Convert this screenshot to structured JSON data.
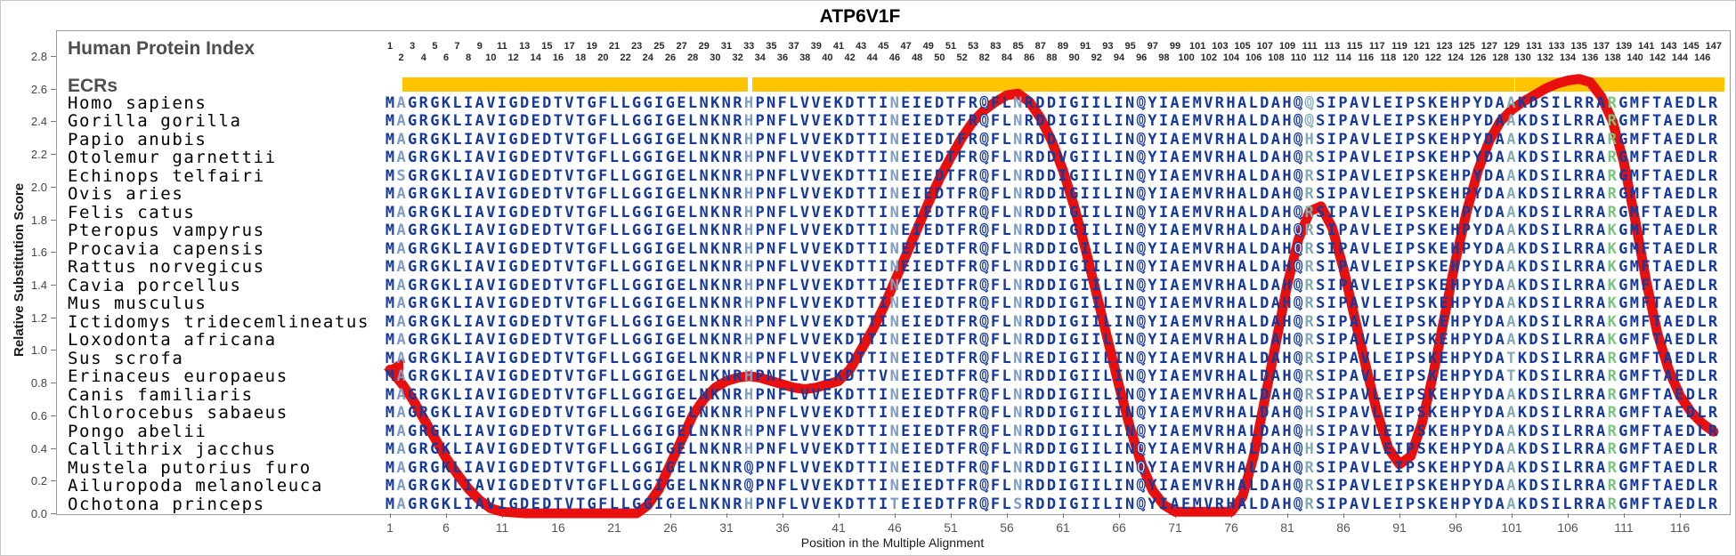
{
  "title": "ATP6V1F",
  "header": {
    "human_protein_index_label": "Human Protein Index",
    "ecrs_label": "ECRs",
    "index_numbering": {
      "columns": 119,
      "skip_after": 53,
      "skip_amount": 28,
      "max_index": 147
    }
  },
  "ecr_bars": {
    "color": "#FFC400",
    "ranges_cols": [
      [
        2.6,
        32.4
      ],
      [
        33.8,
        82.6
      ],
      [
        83.5,
        100.7
      ],
      [
        101.8,
        119.5
      ]
    ]
  },
  "alignment": {
    "species": [
      "Homo sapiens",
      "Gorilla gorilla",
      "Papio anubis",
      "Otolemur garnettii",
      "Echinops telfairi",
      "Ovis aries",
      "Felis catus",
      "Pteropus vampyrus",
      "Procavia capensis",
      "Rattus norvegicus",
      "Cavia porcellus",
      "Mus musculus",
      "Ictidomys tridecemlineatus",
      "Loxodonta africana",
      "Sus scrofa",
      "Erinaceus europaeus",
      "Canis familiaris",
      "Chlorocebus sabaeus",
      "Pongo abelii",
      "Callithrix jacchus",
      "Mustela putorius furo",
      "Ailuropoda melanoleuca",
      "Ochotona princeps"
    ],
    "base_sequence": "MAGRGKLIAVIGDEDTVTGFLLGGIGELNKNRHPNFLVVEKDTTINEIEDTFRQFLNRDDIGIILINQYIAEMVRHALDAHQQSIPAVLEIPSKEHPYDAAKDSILRRARGMFTAEDLR",
    "variants": [
      {
        "row": 3,
        "col": 83,
        "aa": "H"
      },
      {
        "row": 4,
        "col": 61,
        "aa": "V"
      },
      {
        "row": 4,
        "col": 83,
        "aa": "R"
      },
      {
        "row": 5,
        "col": 2,
        "aa": "S"
      },
      {
        "row": 5,
        "col": 83,
        "aa": "R"
      },
      {
        "row": 6,
        "col": 83,
        "aa": "R"
      },
      {
        "row": 7,
        "col": 83,
        "aa": "R"
      },
      {
        "row": 8,
        "col": 83,
        "aa": "R"
      },
      {
        "row": 8,
        "col": 110,
        "aa": "K"
      },
      {
        "row": 9,
        "col": 83,
        "aa": "R"
      },
      {
        "row": 9,
        "col": 110,
        "aa": "K"
      },
      {
        "row": 10,
        "col": 83,
        "aa": "R"
      },
      {
        "row": 10,
        "col": 110,
        "aa": "K"
      },
      {
        "row": 11,
        "col": 83,
        "aa": "R"
      },
      {
        "row": 11,
        "col": 110,
        "aa": "K"
      },
      {
        "row": 12,
        "col": 83,
        "aa": "R"
      },
      {
        "row": 12,
        "col": 110,
        "aa": "K"
      },
      {
        "row": 13,
        "col": 83,
        "aa": "R"
      },
      {
        "row": 13,
        "col": 110,
        "aa": "K"
      },
      {
        "row": 14,
        "col": 83,
        "aa": "R"
      },
      {
        "row": 14,
        "col": 110,
        "aa": "K"
      },
      {
        "row": 15,
        "col": 59,
        "aa": "E"
      },
      {
        "row": 15,
        "col": 83,
        "aa": "R"
      },
      {
        "row": 15,
        "col": 101,
        "aa": "T"
      },
      {
        "row": 16,
        "col": 45,
        "aa": "V"
      },
      {
        "row": 16,
        "col": 83,
        "aa": "R"
      },
      {
        "row": 16,
        "col": 101,
        "aa": "T"
      },
      {
        "row": 17,
        "col": 83,
        "aa": "R"
      },
      {
        "row": 18,
        "col": 83,
        "aa": "H"
      },
      {
        "row": 19,
        "col": 83,
        "aa": "H"
      },
      {
        "row": 20,
        "col": 83,
        "aa": "H"
      },
      {
        "row": 21,
        "col": 33,
        "aa": "Q"
      },
      {
        "row": 21,
        "col": 83,
        "aa": "R"
      },
      {
        "row": 22,
        "col": 33,
        "aa": "Q"
      },
      {
        "row": 22,
        "col": 83,
        "aa": "R"
      },
      {
        "row": 23,
        "col": 46,
        "aa": "T"
      },
      {
        "row": 23,
        "col": 57,
        "aa": "S"
      },
      {
        "row": 23,
        "col": 83,
        "aa": "R"
      }
    ],
    "colors": {
      "navy": "#16399d",
      "steel": "#7d9cc8",
      "teal": "#84aab2",
      "green": "#79c47f",
      "steel_columns": [
        2,
        33,
        46,
        57
      ],
      "teal_columns": [
        83,
        101
      ],
      "green_columns": [
        110
      ]
    }
  },
  "axes": {
    "x": {
      "label": "Position in the Multiple Alignment",
      "ticks": [
        1,
        6,
        11,
        16,
        21,
        26,
        31,
        36,
        41,
        46,
        51,
        56,
        61,
        66,
        71,
        76,
        81,
        86,
        91,
        96,
        101,
        106,
        111,
        116
      ]
    },
    "y": {
      "label": "Relative Substitution Score",
      "min": 0.0,
      "max": 2.8,
      "step": 0.2
    }
  },
  "chart_data": {
    "type": "line",
    "title": "ATP6V1F",
    "xlabel": "Position in the Multiple Alignment",
    "ylabel": "Relative Substitution Score",
    "xlim": [
      1,
      119
    ],
    "ylim": [
      0.0,
      2.8
    ],
    "line_color": "#e8100e",
    "line_width": 11,
    "start_marker": "left-arrow",
    "series": [
      {
        "name": "Relative Substitution Score",
        "points": [
          [
            1,
            0.88
          ],
          [
            2,
            0.8
          ],
          [
            3,
            0.7
          ],
          [
            4,
            0.58
          ],
          [
            5,
            0.46
          ],
          [
            6,
            0.34
          ],
          [
            7,
            0.24
          ],
          [
            8,
            0.15
          ],
          [
            9,
            0.08
          ],
          [
            10,
            0.03
          ],
          [
            11,
            0.01
          ],
          [
            13,
            0.0
          ],
          [
            23,
            0.0
          ],
          [
            24,
            0.05
          ],
          [
            25,
            0.15
          ],
          [
            26,
            0.3
          ],
          [
            27,
            0.45
          ],
          [
            28,
            0.6
          ],
          [
            29,
            0.7
          ],
          [
            30,
            0.77
          ],
          [
            31,
            0.81
          ],
          [
            32,
            0.83
          ],
          [
            33,
            0.84
          ],
          [
            34,
            0.83
          ],
          [
            35,
            0.81
          ],
          [
            36,
            0.79
          ],
          [
            37,
            0.77
          ],
          [
            38,
            0.76
          ],
          [
            39,
            0.77
          ],
          [
            40,
            0.79
          ],
          [
            41,
            0.81
          ],
          [
            42,
            0.88
          ],
          [
            43,
            1.0
          ],
          [
            44,
            1.12
          ],
          [
            45,
            1.26
          ],
          [
            46,
            1.42
          ],
          [
            47,
            1.58
          ],
          [
            48,
            1.74
          ],
          [
            49,
            1.9
          ],
          [
            50,
            2.05
          ],
          [
            51,
            2.18
          ],
          [
            52,
            2.3
          ],
          [
            53,
            2.4
          ],
          [
            54,
            2.47
          ],
          [
            55,
            2.52
          ],
          [
            56,
            2.56
          ],
          [
            57,
            2.57
          ],
          [
            58,
            2.52
          ],
          [
            59,
            2.42
          ],
          [
            60,
            2.28
          ],
          [
            61,
            2.1
          ],
          [
            62,
            1.88
          ],
          [
            63,
            1.62
          ],
          [
            64,
            1.34
          ],
          [
            65,
            1.06
          ],
          [
            66,
            0.78
          ],
          [
            67,
            0.52
          ],
          [
            68,
            0.3
          ],
          [
            69,
            0.14
          ],
          [
            70,
            0.05
          ],
          [
            71,
            0.01
          ],
          [
            76,
            0.01
          ],
          [
            77,
            0.1
          ],
          [
            78,
            0.35
          ],
          [
            79,
            0.7
          ],
          [
            80,
            1.05
          ],
          [
            81,
            1.4
          ],
          [
            82,
            1.68
          ],
          [
            83,
            1.85
          ],
          [
            84,
            1.88
          ],
          [
            85,
            1.75
          ],
          [
            86,
            1.5
          ],
          [
            87,
            1.2
          ],
          [
            88,
            0.9
          ],
          [
            89,
            0.62
          ],
          [
            90,
            0.4
          ],
          [
            91,
            0.3
          ],
          [
            92,
            0.35
          ],
          [
            93,
            0.55
          ],
          [
            94,
            0.85
          ],
          [
            95,
            1.2
          ],
          [
            96,
            1.55
          ],
          [
            97,
            1.85
          ],
          [
            98,
            2.1
          ],
          [
            99,
            2.28
          ],
          [
            100,
            2.4
          ],
          [
            101,
            2.47
          ],
          [
            102,
            2.52
          ],
          [
            103,
            2.56
          ],
          [
            104,
            2.6
          ],
          [
            105,
            2.63
          ],
          [
            106,
            2.65
          ],
          [
            107,
            2.66
          ],
          [
            108,
            2.64
          ],
          [
            109,
            2.55
          ],
          [
            110,
            2.4
          ],
          [
            111,
            2.15
          ],
          [
            112,
            1.8
          ],
          [
            113,
            1.42
          ],
          [
            114,
            1.1
          ],
          [
            115,
            0.88
          ],
          [
            116,
            0.72
          ],
          [
            117,
            0.62
          ],
          [
            118,
            0.55
          ],
          [
            119,
            0.5
          ]
        ]
      }
    ]
  }
}
